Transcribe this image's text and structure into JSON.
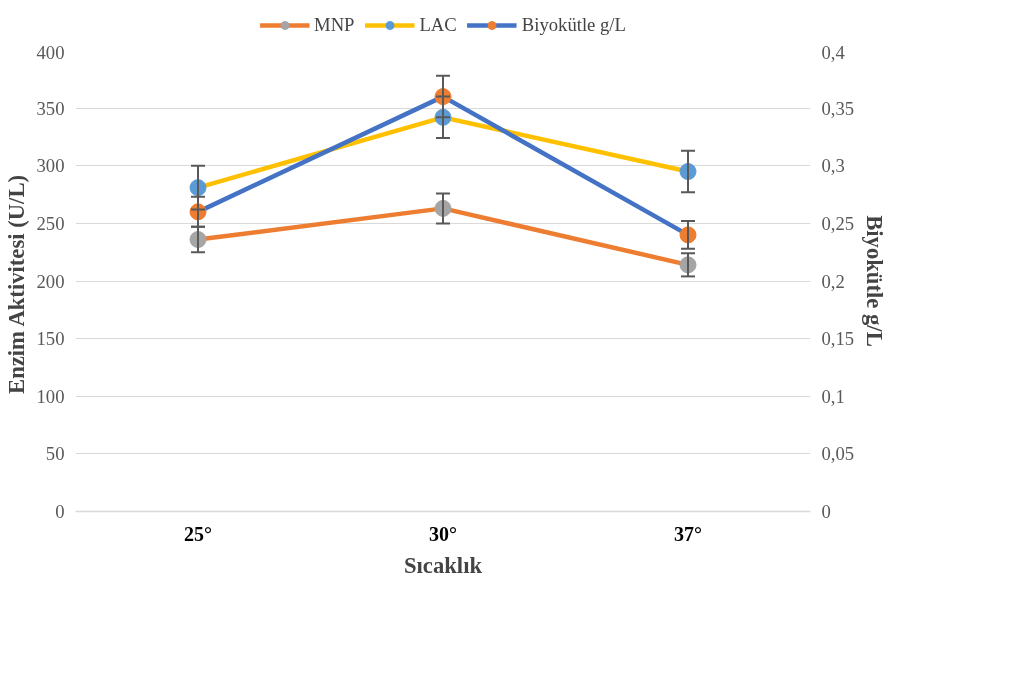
{
  "chart_data": {
    "type": "line",
    "xlabel": "Sıcaklık",
    "ylabel": "Enzim Aktivitesi  (U/L)",
    "y2label": "Biyokütle g/L",
    "categories": [
      "25°",
      "30°",
      "37°"
    ],
    "series": [
      {
        "name": "MNP",
        "color": "#ed7d31",
        "colors": [
          "#a5a5a5",
          "#a5a5a5",
          "#a5a5a5"
        ],
        "values": [
          236,
          263,
          214
        ],
        "errors": [
          11,
          13,
          10
        ]
      },
      {
        "name": "LAC",
        "color": "#ffc000",
        "colors": [
          "#5b9bd5",
          "#5b9bd5",
          "#5b9bd5"
        ],
        "values": [
          281,
          342,
          295
        ],
        "errors": [
          19,
          18,
          18
        ]
      },
      {
        "name": "Biyokütle g/L",
        "color": "#4472c4",
        "colors": [
          "#ed7d31",
          "#ed7d31",
          "#ed7d31"
        ],
        "values": [
          0.26,
          0.36,
          0.24
        ],
        "errors": [
          0.013,
          0.018,
          0.012
        ],
        "axis": "y2"
      }
    ],
    "ylim": [
      0,
      400
    ],
    "yticks": [
      0,
      50,
      100,
      150,
      200,
      250,
      300,
      350,
      400
    ],
    "y2lim": [
      0,
      0.4
    ],
    "y2ticks": [
      0,
      {
        "value": 0.05,
        "label": "0,05"
      },
      {
        "value": 0.1,
        "label": "0,1"
      },
      {
        "value": 0.15,
        "label": "0,15"
      },
      {
        "value": 0.2,
        "label": "0,2"
      },
      {
        "value": 0.25,
        "label": "0,25"
      },
      {
        "value": 0.3,
        "label": "0,3"
      },
      {
        "value": 0.35,
        "label": "0,35"
      },
      {
        "value": 0.4,
        "label": "0,4"
      }
    ],
    "grid": "y",
    "legend": "top",
    "marker": "circle",
    "line_style": "solid"
  }
}
